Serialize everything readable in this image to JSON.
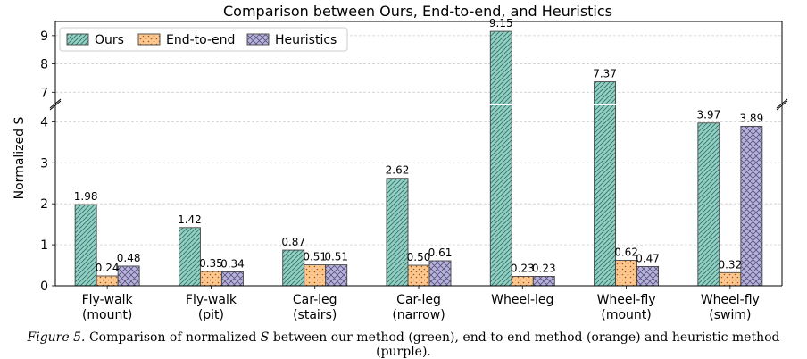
{
  "chart_data": {
    "type": "bar",
    "title": "Comparison between Ours, End-to-end, and Heuristics",
    "ylabel": "Normalized S",
    "xlabel": "",
    "categories": [
      [
        "Fly-walk",
        "(mount)"
      ],
      [
        "Fly-walk",
        "(pit)"
      ],
      [
        "Car-leg",
        "(stairs)"
      ],
      [
        "Car-leg",
        "(narrow)"
      ],
      [
        "Wheel-leg"
      ],
      [
        "Wheel-fly",
        "(mount)"
      ],
      [
        "Wheel-fly",
        "(swim)"
      ]
    ],
    "series": [
      {
        "name": "Ours",
        "values": [
          1.98,
          1.42,
          0.87,
          2.62,
          9.15,
          7.37,
          3.97
        ],
        "labels": [
          "1.98",
          "1.42",
          "0.87",
          "2.62",
          "9.15",
          "7.37",
          "3.97"
        ],
        "color": "#8fd1c4",
        "hatch": "diagonal"
      },
      {
        "name": "End-to-end",
        "values": [
          0.24,
          0.35,
          0.51,
          0.5,
          0.23,
          0.62,
          0.32
        ],
        "labels": [
          "0.24",
          "0.35",
          "0.51",
          "0.50",
          "0.23",
          "0.62",
          "0.32"
        ],
        "color": "#ffc78e",
        "hatch": "dots"
      },
      {
        "name": "Heuristics",
        "values": [
          0.48,
          0.34,
          0.51,
          0.61,
          0.23,
          0.47,
          3.89
        ],
        "labels": [
          "0.48",
          "0.34",
          "0.51",
          "0.61",
          "0.23",
          "0.47",
          "3.89"
        ],
        "color": "#b7b2dc",
        "hatch": "crosshatch"
      }
    ],
    "y_axis_lower": {
      "range": [
        0,
        4.4
      ],
      "ticks": [
        0,
        1,
        2,
        3,
        4
      ]
    },
    "y_axis_upper": {
      "range": [
        6.6,
        9.5
      ],
      "ticks": [
        7,
        8,
        9
      ]
    },
    "grid": true,
    "legend_position": "top-left"
  },
  "caption": {
    "figure_label": "Figure 5.",
    "text_before_symbol": "Comparison of normalized",
    "symbol": "S",
    "text_after_symbol": "between our method (green), end-to-end method (orange) and heuristic method (purple)."
  }
}
